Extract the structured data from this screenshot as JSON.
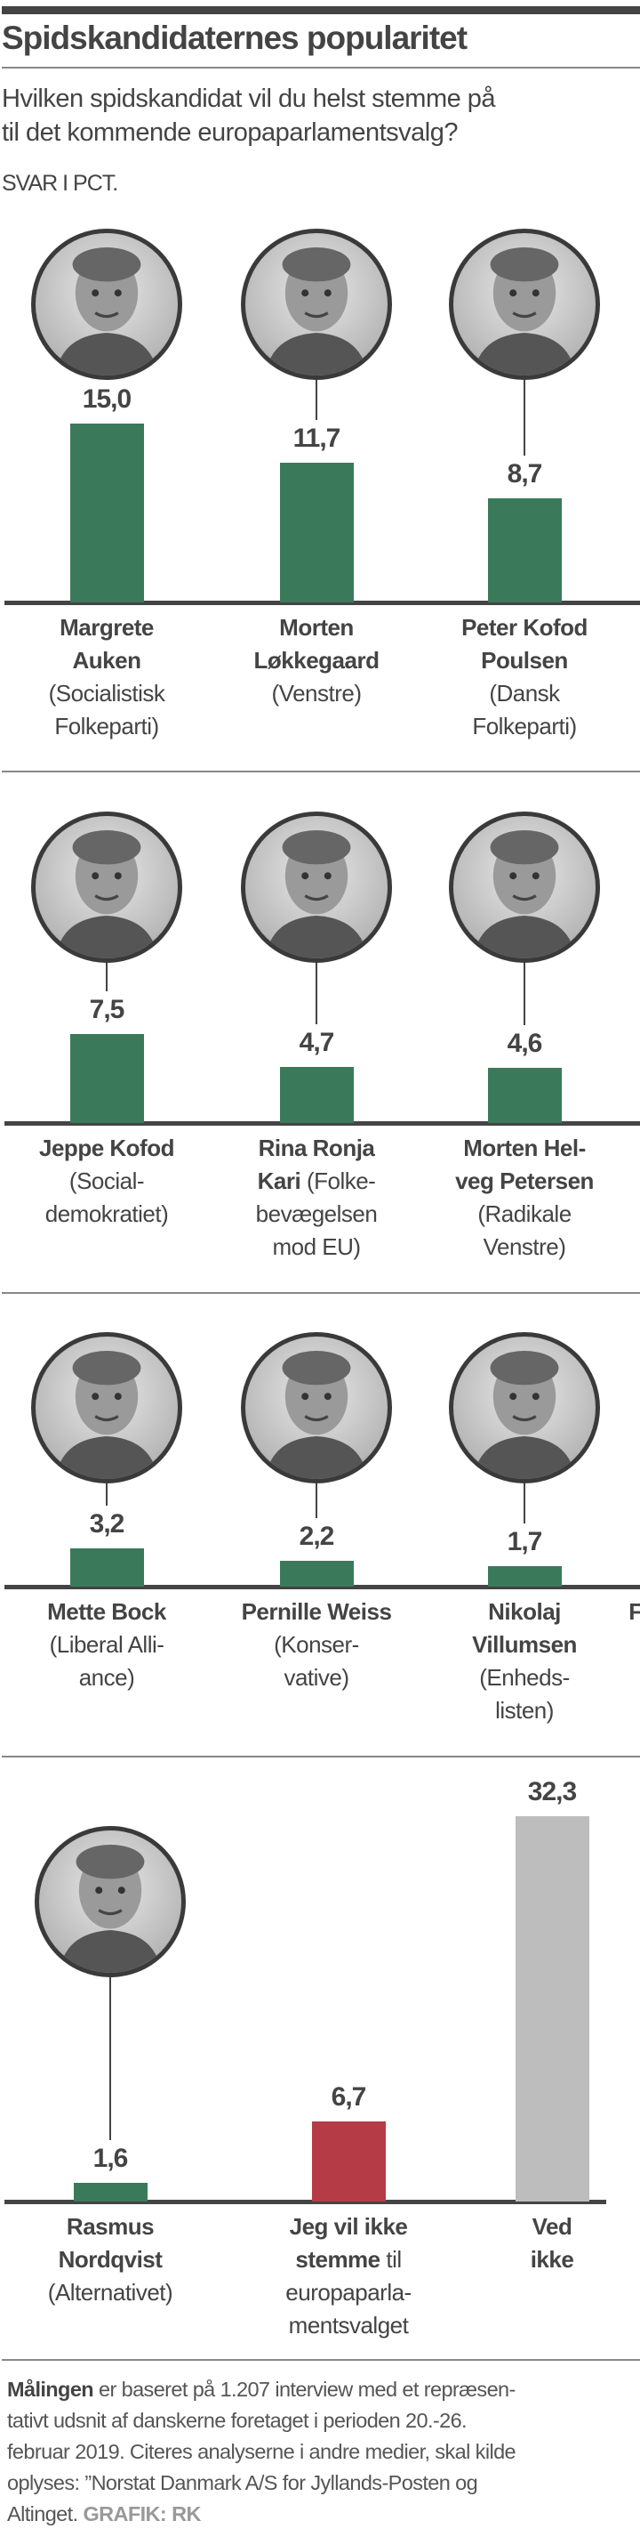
{
  "title": "Spidskandidaternes popularitet",
  "subtitle": "Hvilken spidskandidat vil du helst stemme på\ntil det kommende europaparlamentsvalg?",
  "unit": "SVAR I PCT.",
  "colors": {
    "green": "#3a7a5a",
    "red": "#b53c47",
    "gray": "#bdbdbd",
    "text": "#444444"
  },
  "chart_data": {
    "type": "bar",
    "title": "Spidskandidaternes popularitet",
    "ylabel": "SVAR I PCT.",
    "ylim": [
      0,
      33
    ],
    "grid": false,
    "categories": [
      "Margrete Auken",
      "Morten Løkkegaard",
      "Peter Kofod Poulsen",
      "Jeppe Kofod",
      "Rina Ronja Kari",
      "Morten Helveg Petersen",
      "Mette Bock",
      "Pernille Weiss",
      "Nikolaj Villumsen",
      "Rasmus Nordqvist",
      "Jeg vil ikke stemme til europaparlamentsvalget",
      "Ved ikke"
    ],
    "values": [
      15.0,
      11.7,
      8.7,
      7.5,
      4.7,
      4.6,
      3.2,
      2.2,
      1.7,
      1.6,
      6.7,
      32.3
    ],
    "sections": [
      {
        "items": [
          {
            "value": "15,0",
            "v": 15.0,
            "name": "Margrete\nAuken",
            "party": "\n(Socialistisk\nFolkeparti)",
            "color": "green",
            "photo": "portrait-photo"
          },
          {
            "value": "11,7",
            "v": 11.7,
            "name": "Morten\nLøkkegaard",
            "party": "\n(Venstre)",
            "color": "green",
            "photo": "portrait-photo"
          },
          {
            "value": "8,7",
            "v": 8.7,
            "name": "Peter Kofod\nPoulsen",
            "party": "\n(Dansk\nFolkeparti)",
            "color": "green",
            "photo": "portrait-photo"
          }
        ]
      },
      {
        "items": [
          {
            "value": "7,5",
            "v": 7.5,
            "name": "Jeppe Kofod",
            "party": "\n(Social-\ndemokratiet)",
            "color": "green",
            "photo": "portrait-photo"
          },
          {
            "value": "4,7",
            "v": 4.7,
            "name": "Rina Ronja\nKari",
            "party": " (Folke-\nbevægelsen\nmod EU)",
            "color": "green",
            "photo": "portrait-photo"
          },
          {
            "value": "4,6",
            "v": 4.6,
            "name": "Morten Hel-\nveg Petersen",
            "party": "\n(Radikale\nVenstre)",
            "color": "green",
            "photo": "portrait-photo"
          }
        ]
      },
      {
        "items": [
          {
            "value": "3,2",
            "v": 3.2,
            "name": "Mette Bock",
            "party": "\n(Liberal Alli-\nance)",
            "color": "green",
            "photo": "portrait-photo"
          },
          {
            "value": "2,2",
            "v": 2.2,
            "name": "Pernille Weiss",
            "party": "\n(Konser-\nvative)",
            "color": "green",
            "photo": "portrait-photo"
          },
          {
            "value": "1,7",
            "v": 1.7,
            "name": "Nikolaj\nVillumsen",
            "party": "\n(Enheds-\nlisten)",
            "color": "green",
            "photo": "portrait-photo"
          },
          {
            "value": "",
            "v": 0,
            "name": "F",
            "party": "",
            "color": "green",
            "photo": ""
          }
        ]
      },
      {
        "items": [
          {
            "value": "1,6",
            "v": 1.6,
            "name": "Rasmus\nNordqvist",
            "party": "\n(Alternativet)",
            "color": "green",
            "photo": "portrait-photo"
          },
          {
            "value": "6,7",
            "v": 6.7,
            "name": "Jeg vil ikke\nstemme",
            "party": " til\neuropaparla-\nmentsvalget",
            "color": "red",
            "photo": ""
          },
          {
            "value": "32,3",
            "v": 32.3,
            "name": "Ved\nikke",
            "party": "",
            "color": "gray",
            "photo": ""
          }
        ]
      }
    ]
  },
  "footer": {
    "lead": "Målingen",
    "text": " er baseret på 1.207 interview med et repræsen-\ntativt udsnit af danskerne foretaget i perioden 20.-26.\nfebruar 2019. Citeres analyserne i andre medier, skal kilde\noplyses: ”Norstat Danmark A/S for Jyllands-Posten og\nAltinget. ",
    "credit": "GRAFIK: RK"
  }
}
